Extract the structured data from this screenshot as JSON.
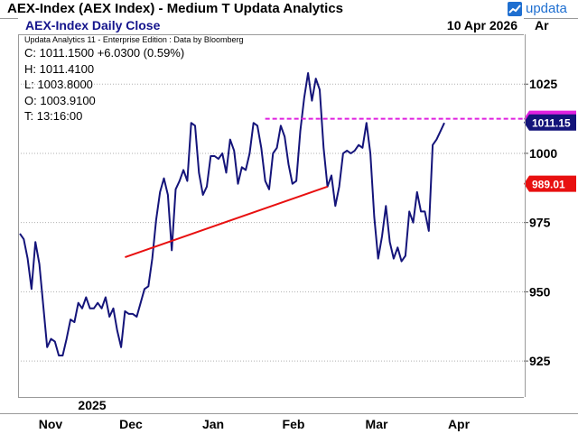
{
  "window": {
    "title": "AEX-Index (AEX Index) - Medium T  Updata Analytics",
    "brand": "updata",
    "axis_tag": "Ar"
  },
  "header": {
    "title": "AEX-Index Daily Close",
    "date": "10 Apr 2026"
  },
  "info": {
    "source": "Updata Analytics 11 - Enterprise Edition : Data by Bloomberg",
    "close": "C:  1011.1500  +6.0300 (0.59%)",
    "high": "H:  1011.4100",
    "low": "L:  1003.8000",
    "open": "O:  1003.9100",
    "time": "T:  13:16:00"
  },
  "colors": {
    "price_line": "#14147a",
    "trendline": "#e81010",
    "resistance": "#e020e0",
    "price_tag": "#14147a",
    "trend_tag": "#e81010"
  },
  "chart_data": {
    "type": "line",
    "title": "AEX-Index Daily Close",
    "ylim": [
      912,
      1043
    ],
    "yticks": [
      925,
      950,
      975,
      1000,
      1025
    ],
    "grid": "horizontal dotted",
    "x_labels": [
      "Nov",
      "Dec",
      "Jan",
      "Feb",
      "Mar",
      "Apr"
    ],
    "year_label": "2025",
    "series": [
      {
        "values": [
          971,
          969,
          962,
          951,
          968,
          960,
          945,
          930,
          933,
          932,
          927,
          927,
          933,
          940,
          939,
          946,
          944,
          948,
          944,
          944,
          946,
          944,
          948,
          941,
          944,
          936,
          930,
          943,
          942,
          942,
          941,
          946,
          951,
          952,
          962,
          976,
          986,
          991,
          985,
          965,
          987,
          990,
          994,
          990,
          1011,
          1010,
          993,
          985,
          988,
          999,
          999,
          998,
          1000,
          993,
          1005,
          1001,
          989,
          995,
          994,
          1000,
          1011,
          1010,
          1002,
          990,
          987,
          1000,
          1002,
          1010,
          1006,
          996,
          989,
          990,
          1008,
          1020,
          1029,
          1019,
          1027,
          1023,
          1002,
          988,
          992,
          981,
          988,
          1000,
          1001,
          1000,
          1001,
          1003,
          1002,
          1011,
          1000,
          977,
          962,
          970,
          981,
          968,
          962,
          966,
          961,
          963,
          979,
          975,
          986,
          979,
          979,
          972,
          1003,
          1005,
          1008,
          1011
        ]
      }
    ],
    "lines": [
      {
        "name": "trendline",
        "x0": 27,
        "y0": 962.5,
        "x1": 79,
        "y1": 988
      },
      {
        "name": "resistance",
        "x0": 63,
        "y0": 1012.5,
        "x1": 105,
        "y1": 1012.5
      }
    ],
    "tags": {
      "price": "1011.15",
      "trend": "989.01",
      "resistance": "1012.50"
    }
  }
}
